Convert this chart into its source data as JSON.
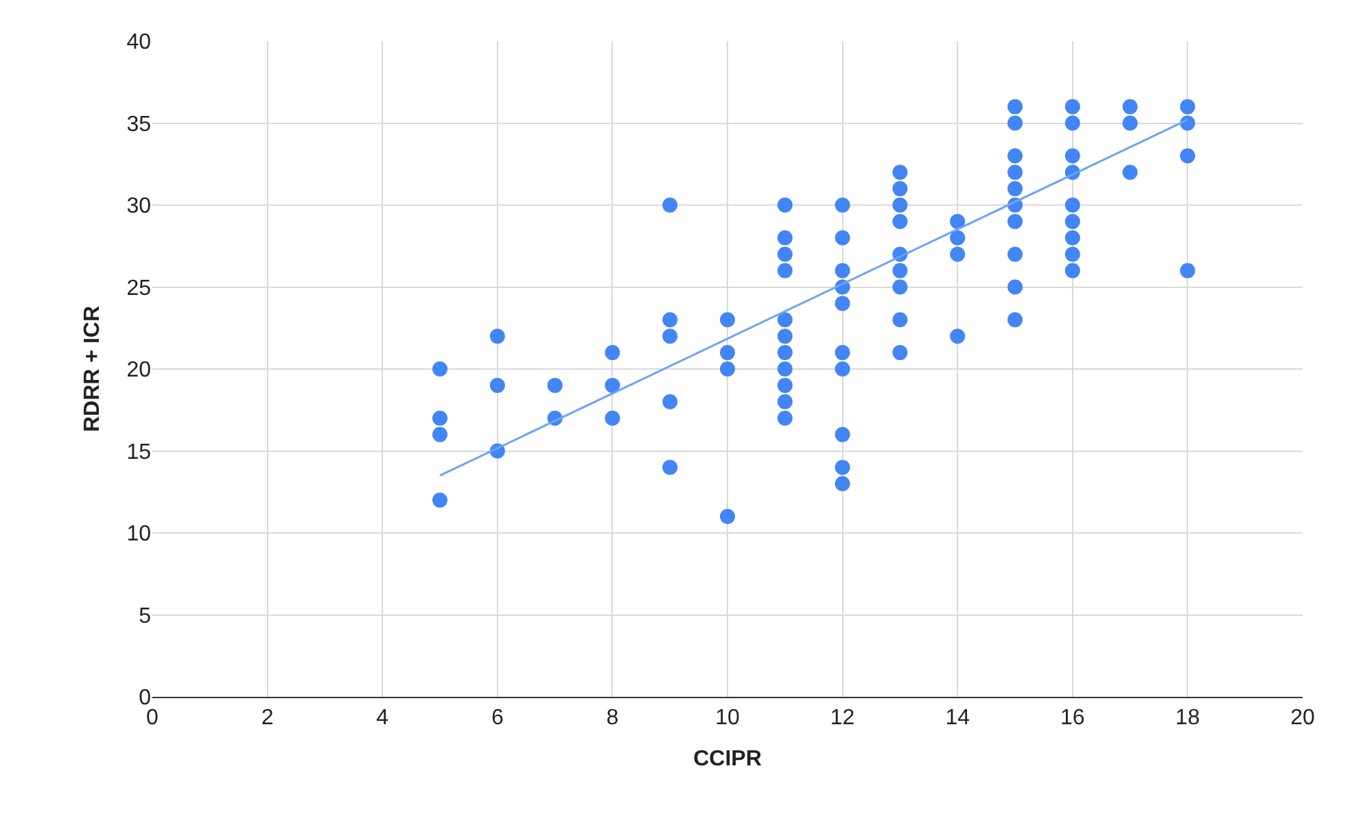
{
  "chart_data": {
    "type": "scatter",
    "xlabel": "CCIPR",
    "ylabel": "RDRR + ICR",
    "xlim": [
      0,
      20
    ],
    "xticks": [
      0,
      2,
      4,
      6,
      8,
      10,
      12,
      14,
      16,
      18,
      20
    ],
    "ylim": [
      0,
      40
    ],
    "yticks": [
      0,
      5,
      10,
      15,
      20,
      25,
      30,
      35,
      40
    ],
    "grid": true,
    "legend": false,
    "marker": "circle",
    "series": [
      {
        "color": "#4285f4",
        "x": [
          5,
          5,
          5,
          5,
          6,
          6,
          6,
          7,
          7,
          8,
          8,
          8,
          9,
          9,
          9,
          9,
          9,
          10,
          10,
          10,
          10,
          11,
          11,
          11,
          11,
          11,
          11,
          11,
          11,
          11,
          11,
          11,
          12,
          12,
          12,
          12,
          12,
          12,
          12,
          12,
          12,
          12,
          13,
          13,
          13,
          13,
          13,
          13,
          13,
          13,
          13,
          14,
          14,
          14,
          14,
          15,
          15,
          15,
          15,
          15,
          15,
          15,
          15,
          15,
          15,
          16,
          16,
          16,
          16,
          16,
          16,
          16,
          16,
          16,
          17,
          17,
          17,
          18,
          18,
          18,
          18
        ],
        "values": [
          20,
          17,
          16,
          12,
          22,
          19,
          15,
          19,
          17,
          21,
          19,
          17,
          30,
          23,
          22,
          18,
          14,
          23,
          21,
          20,
          11,
          30,
          28,
          27,
          26,
          23,
          22,
          21,
          20,
          19,
          18,
          17,
          30,
          28,
          26,
          25,
          24,
          21,
          20,
          16,
          14,
          13,
          32,
          31,
          30,
          29,
          27,
          26,
          25,
          23,
          21,
          29,
          28,
          27,
          22,
          36,
          35,
          33,
          32,
          31,
          30,
          29,
          27,
          25,
          23,
          36,
          35,
          33,
          32,
          30,
          29,
          28,
          27,
          26,
          36,
          35,
          32,
          36,
          35,
          33,
          26
        ]
      },
      {
        "type": "line",
        "color": "#6ea3f5",
        "x": [
          5,
          18
        ],
        "values": [
          13.5,
          35.2
        ],
        "marker": "none"
      }
    ]
  }
}
